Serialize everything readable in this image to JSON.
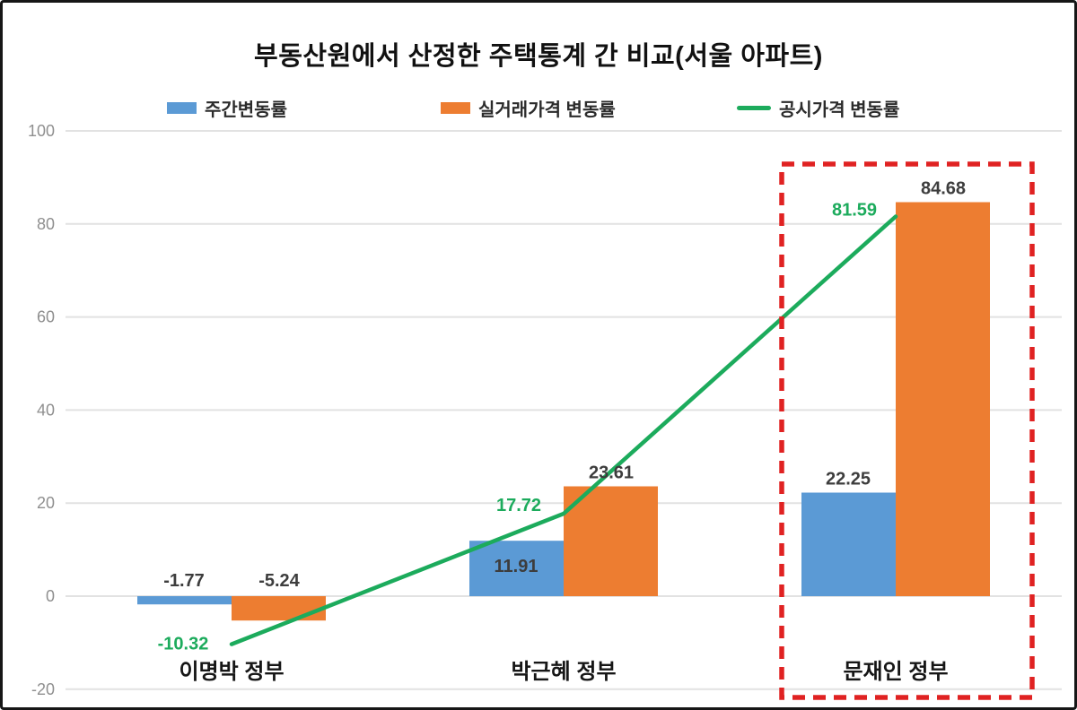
{
  "chart_data": {
    "type": "bar",
    "title": "부동산원에서 산정한 주택통계 간 비교(서울 아파트)",
    "categories": [
      "이명박 정부",
      "박근혜 정부",
      "문재인 정부"
    ],
    "series": [
      {
        "key": "weekly-change-rate",
        "name": "주간변동률",
        "type": "bar",
        "color": "#5B9AD5",
        "values": [
          -1.77,
          11.91,
          22.25
        ]
      },
      {
        "key": "actual-transaction-price-change-rate",
        "name": "실거래가격 변동률",
        "type": "bar",
        "color": "#ED7D31",
        "values": [
          -5.24,
          23.61,
          84.68
        ]
      },
      {
        "key": "official-price-change-rate",
        "name": "공시가격 변동률",
        "type": "line",
        "color": "#1CAB5C",
        "values": [
          -10.32,
          17.72,
          81.59
        ]
      }
    ],
    "ylim": [
      -20,
      100
    ],
    "yticks": [
      100,
      80,
      60,
      40,
      20,
      0,
      -20
    ],
    "grid": true,
    "gridline_color": "#E2E2E2",
    "legend_position": "top",
    "value_labels": true,
    "value_label_color": "#3D3D3D",
    "tick_label_color": "#8F8F8F",
    "category_label_color": "#161616",
    "highlight": {
      "category": "문재인 정부",
      "shape": "dashed-rectangle",
      "color": "#E02222"
    }
  }
}
